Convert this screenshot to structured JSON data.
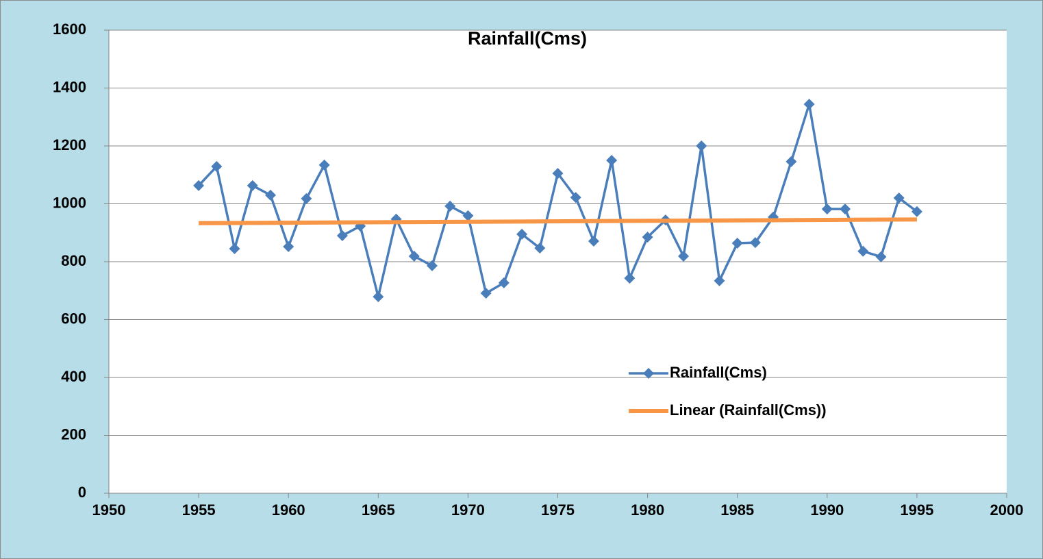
{
  "chart_data": {
    "type": "line",
    "title": "Rainfall(Cms)",
    "x": [
      1955,
      1956,
      1957,
      1958,
      1959,
      1960,
      1961,
      1962,
      1963,
      1964,
      1965,
      1966,
      1967,
      1968,
      1969,
      1970,
      1971,
      1972,
      1973,
      1974,
      1975,
      1976,
      1977,
      1978,
      1979,
      1980,
      1981,
      1982,
      1983,
      1984,
      1985,
      1986,
      1987,
      1988,
      1989,
      1990,
      1991,
      1992,
      1993,
      1994,
      1995
    ],
    "series": [
      {
        "name": "Rainfall(Cms)",
        "color": "#4a7ebb",
        "marker": "diamond",
        "values": [
          1063,
          1129,
          845,
          1063,
          1030,
          852,
          1018,
          1134,
          890,
          923,
          679,
          947,
          819,
          786,
          992,
          959,
          691,
          727,
          895,
          847,
          1105,
          1022,
          871,
          1150,
          743,
          885,
          944,
          819,
          1200,
          734,
          864,
          866,
          954,
          1146,
          1344,
          982,
          982,
          836,
          817,
          1020,
          973
        ]
      },
      {
        "name": "Linear (Rainfall(Cms))",
        "color": "#f79646",
        "marker": "none",
        "x": [
          1955,
          1995
        ],
        "values": [
          933,
          946
        ]
      }
    ],
    "xlim": [
      1950,
      2000
    ],
    "xticks": [
      1950,
      1955,
      1960,
      1965,
      1970,
      1975,
      1980,
      1985,
      1990,
      1995,
      2000
    ],
    "ylim": [
      0,
      1600
    ],
    "yticks": [
      0,
      200,
      400,
      600,
      800,
      1000,
      1200,
      1400,
      1600
    ],
    "grid": true,
    "legend": "right"
  }
}
